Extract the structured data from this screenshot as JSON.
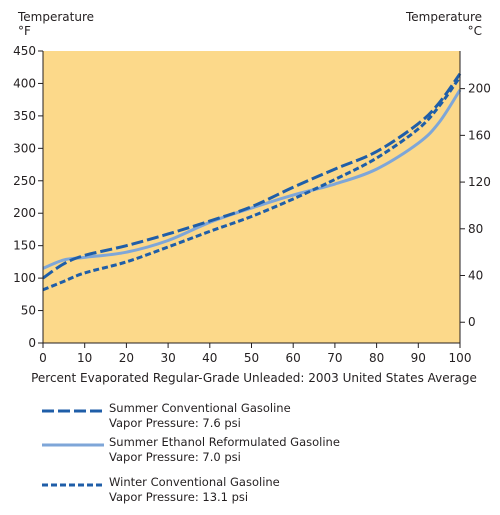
{
  "chart_data": {
    "type": "line",
    "title": "",
    "xlabel": "Percent Evaporated Regular-Grade Unleaded: 2003 United States Average",
    "ylabel_left": [
      "Temperature",
      "°F"
    ],
    "ylabel_right": [
      "Temperature",
      "°C"
    ],
    "xlim": [
      0,
      100
    ],
    "ylim": [
      0,
      450
    ],
    "x_ticks": [
      0,
      10,
      20,
      30,
      40,
      50,
      60,
      70,
      80,
      90,
      100
    ],
    "y_ticks_left": [
      0,
      50,
      100,
      150,
      200,
      250,
      300,
      350,
      400,
      450
    ],
    "y_ticks_right_celsius": [
      0,
      40,
      80,
      120,
      160,
      200
    ],
    "grid": false,
    "background_color": "#fcd98a",
    "legend_position": "bottom",
    "series": [
      {
        "name": "Summer Conventional Gasoline",
        "note": "Vapor Pressure: 7.6 psi",
        "style": "long-dash",
        "color": "#1f5ea8",
        "x": [
          0,
          5,
          10,
          20,
          30,
          40,
          50,
          60,
          70,
          80,
          90,
          95,
          100
        ],
        "y": [
          100,
          122,
          135,
          150,
          168,
          188,
          210,
          240,
          268,
          295,
          338,
          370,
          415
        ]
      },
      {
        "name": "Summer Ethanol Reformulated Gasoline",
        "note": "Vapor Pressure: 7.0 psi",
        "style": "solid",
        "color": "#7ea6d8",
        "x": [
          0,
          5,
          10,
          20,
          30,
          40,
          50,
          60,
          70,
          80,
          90,
          95,
          100
        ],
        "y": [
          115,
          128,
          132,
          140,
          158,
          186,
          208,
          228,
          245,
          268,
          308,
          340,
          390
        ]
      },
      {
        "name": "Winter Conventional Gasoline",
        "note": "Vapor Pressure: 13.1 psi",
        "style": "short-dash",
        "color": "#1f5ea8",
        "x": [
          0,
          5,
          10,
          20,
          30,
          40,
          50,
          60,
          70,
          80,
          90,
          95,
          100
        ],
        "y": [
          82,
          95,
          108,
          125,
          148,
          172,
          195,
          222,
          252,
          285,
          330,
          365,
          410
        ]
      }
    ]
  }
}
